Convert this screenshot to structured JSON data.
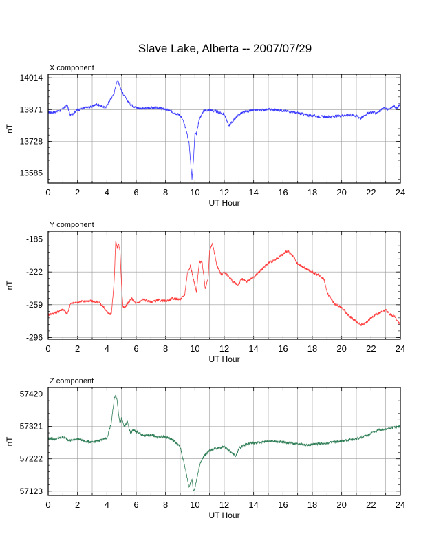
{
  "title": "Slave Lake, Alberta -- 2007/07/29",
  "chart_data": [
    {
      "type": "line",
      "label": "X component",
      "ylabel": "nT",
      "xlabel": "UT Hour",
      "xlim": [
        0,
        24
      ],
      "xticks": [
        "0",
        "2",
        "4",
        "6",
        "8",
        "10",
        "12",
        "14",
        "16",
        "18",
        "20",
        "22",
        "24"
      ],
      "ylim": [
        13540,
        14030
      ],
      "yticks": [
        "14014",
        "13871",
        "13728",
        "13585"
      ],
      "ytick_values": [
        14014,
        13871,
        13728,
        13585
      ],
      "grid": true,
      "color": "#3a3aff",
      "series": [
        {
          "x": [
            0,
            0.3,
            0.6,
            0.9,
            1.1,
            1.3,
            1.5,
            2,
            2.5,
            3,
            3.3,
            3.6,
            3.9,
            4.2,
            4.5,
            4.7,
            4.8,
            5,
            5.3,
            5.6,
            6,
            6.5,
            7,
            7.5,
            8,
            8.5,
            9,
            9.2,
            9.4,
            9.6,
            9.7,
            9.8,
            9.9,
            10,
            10.1,
            10.3,
            10.6,
            11,
            11.5,
            12,
            12.3,
            12.5,
            12.7,
            12.9,
            13.2,
            13.5,
            14,
            14.5,
            15,
            15.5,
            16,
            16.5,
            17,
            17.5,
            18,
            18.5,
            19,
            19.5,
            20,
            20.5,
            21,
            21.3,
            21.6,
            22,
            22.3,
            22.6,
            22.9,
            23.2,
            23.5,
            23.8,
            24
          ],
          "values": [
            13860,
            13858,
            13862,
            13870,
            13880,
            13890,
            13845,
            13870,
            13878,
            13885,
            13895,
            13888,
            13880,
            13912,
            13945,
            14005,
            13995,
            13955,
            13920,
            13895,
            13880,
            13875,
            13880,
            13878,
            13872,
            13860,
            13845,
            13820,
            13780,
            13720,
            13640,
            13560,
            13640,
            13770,
            13760,
            13830,
            13865,
            13870,
            13862,
            13850,
            13800,
            13812,
            13830,
            13845,
            13855,
            13862,
            13868,
            13870,
            13871,
            13870,
            13866,
            13862,
            13855,
            13848,
            13844,
            13840,
            13838,
            13840,
            13844,
            13848,
            13843,
            13832,
            13848,
            13860,
            13855,
            13865,
            13880,
            13870,
            13885,
            13878,
            13900
          ]
        }
      ]
    },
    {
      "type": "line",
      "label": "Y component",
      "ylabel": "nT",
      "xlabel": "UT Hour",
      "xlim": [
        0,
        24
      ],
      "xticks": [
        "0",
        "2",
        "4",
        "6",
        "8",
        "10",
        "12",
        "14",
        "16",
        "18",
        "20",
        "22",
        "24"
      ],
      "ylim": [
        -298,
        -176
      ],
      "yticks": [
        "-185",
        "-222",
        "-259",
        "-296"
      ],
      "ytick_values": [
        -185,
        -222,
        -259,
        -296
      ],
      "grid": true,
      "color": "#ff3a3a",
      "series": [
        {
          "x": [
            0,
            0.5,
            1,
            1.3,
            1.5,
            2,
            2.5,
            3,
            3.5,
            3.8,
            4,
            4.3,
            4.5,
            4.6,
            4.7,
            4.8,
            4.9,
            5,
            5.1,
            5.2,
            5.4,
            5.7,
            6,
            6.5,
            7,
            7.5,
            8,
            8.5,
            9,
            9.3,
            9.5,
            9.7,
            9.9,
            10.1,
            10.3,
            10.5,
            10.7,
            10.9,
            11,
            11.2,
            11.5,
            11.8,
            12,
            12.3,
            12.6,
            12.9,
            13.2,
            13.5,
            14,
            14.5,
            15,
            15.5,
            16,
            16.3,
            16.7,
            17,
            17.5,
            18,
            18.5,
            18.8,
            19,
            19.5,
            20,
            20.3,
            20.6,
            21,
            21.3,
            21.6,
            22,
            22.3,
            22.6,
            23,
            23.3,
            23.6,
            24
          ],
          "values": [
            -270,
            -268,
            -264,
            -270,
            -258,
            -256,
            -255,
            -255,
            -257,
            -262,
            -267,
            -270,
            -232,
            -186,
            -195,
            -190,
            -200,
            -235,
            -262,
            -262,
            -258,
            -252,
            -258,
            -253,
            -256,
            -254,
            -255,
            -252,
            -253,
            -248,
            -222,
            -215,
            -230,
            -245,
            -210,
            -212,
            -240,
            -230,
            -198,
            -190,
            -215,
            -225,
            -222,
            -227,
            -233,
            -237,
            -230,
            -233,
            -228,
            -220,
            -212,
            -208,
            -202,
            -198,
            -205,
            -213,
            -218,
            -222,
            -226,
            -230,
            -245,
            -258,
            -262,
            -268,
            -273,
            -278,
            -282,
            -280,
            -274,
            -270,
            -268,
            -265,
            -270,
            -272,
            -282
          ]
        }
      ]
    },
    {
      "type": "line",
      "label": "Z component",
      "ylabel": "nT",
      "xlabel": "UT Hour",
      "xlim": [
        0,
        24
      ],
      "xticks": [
        "0",
        "2",
        "4",
        "6",
        "8",
        "10",
        "12",
        "14",
        "16",
        "18",
        "20",
        "22",
        "24"
      ],
      "ylim": [
        57110,
        57440
      ],
      "yticks": [
        "57420",
        "57321",
        "57222",
        "57123"
      ],
      "ytick_values": [
        57420,
        57321,
        57222,
        57123
      ],
      "grid": true,
      "color": "#2e7d55",
      "series": [
        {
          "x": [
            0,
            0.5,
            1,
            1.5,
            2,
            2.5,
            3,
            3.5,
            4,
            4.3,
            4.5,
            4.6,
            4.7,
            4.8,
            4.9,
            5,
            5.2,
            5.4,
            5.6,
            5.8,
            6,
            6.5,
            7,
            7.5,
            8,
            8.5,
            9,
            9.2,
            9.4,
            9.6,
            9.8,
            9.9,
            10,
            10.1,
            10.3,
            10.6,
            11,
            11.5,
            12,
            12.5,
            12.8,
            13,
            13.3,
            13.6,
            14,
            14.5,
            15,
            15.5,
            16,
            16.5,
            17,
            17.5,
            18,
            18.5,
            19,
            19.5,
            20,
            20.5,
            21,
            21.5,
            22,
            22.5,
            23,
            23.5,
            24
          ],
          "values": [
            57285,
            57282,
            57288,
            57278,
            57283,
            57276,
            57272,
            57278,
            57285,
            57330,
            57405,
            57420,
            57400,
            57360,
            57330,
            57345,
            57320,
            57335,
            57300,
            57310,
            57305,
            57292,
            57295,
            57288,
            57290,
            57280,
            57258,
            57220,
            57180,
            57135,
            57160,
            57125,
            57130,
            57155,
            57200,
            57230,
            57248,
            57255,
            57260,
            57240,
            57230,
            57255,
            57262,
            57268,
            57270,
            57272,
            57276,
            57274,
            57273,
            57270,
            57266,
            57265,
            57266,
            57268,
            57270,
            57273,
            57276,
            57280,
            57283,
            57290,
            57300,
            57310,
            57313,
            57318,
            57322
          ]
        }
      ]
    }
  ]
}
